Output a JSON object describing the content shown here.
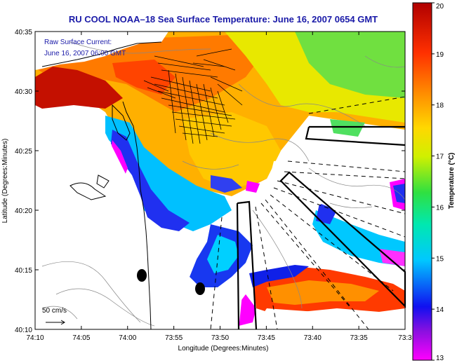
{
  "title": "RU COOL  NOAA–18  Sea Surface Temperature:  June 16, 2007 0654 GMT",
  "annotation": {
    "line1": "Raw Surface Current:",
    "line2": "June 16, 2007 06:00 GMT"
  },
  "scale_label": "50 cm/s",
  "x_axis": {
    "label": "Longitude (Degrees:Minutes)",
    "ticks": [
      "74:10",
      "74:05",
      "74:00",
      "73:55",
      "73:50",
      "73:45",
      "73:40",
      "73:35",
      "73:3"
    ]
  },
  "y_axis": {
    "label": "Latitude (Degrees:Minutes)",
    "ticks": [
      "40:35",
      "40:30",
      "40:25",
      "40:20",
      "40:15",
      "40:10"
    ]
  },
  "colorbar": {
    "label": "Temperature (°C)",
    "ticks": [
      "20",
      "19",
      "18",
      "17",
      "16",
      "15",
      "14",
      "13"
    ],
    "min": 13,
    "max": 20,
    "colors": [
      "#ff00ff",
      "#1010f0",
      "#00c8ff",
      "#00e8b0",
      "#30e040",
      "#d0f000",
      "#ffd800",
      "#ff8a00",
      "#ff3000",
      "#b00000"
    ]
  },
  "colors": {
    "title": "#1a1aa8",
    "land": "#ffffff",
    "no_data": "#ffffff"
  }
}
